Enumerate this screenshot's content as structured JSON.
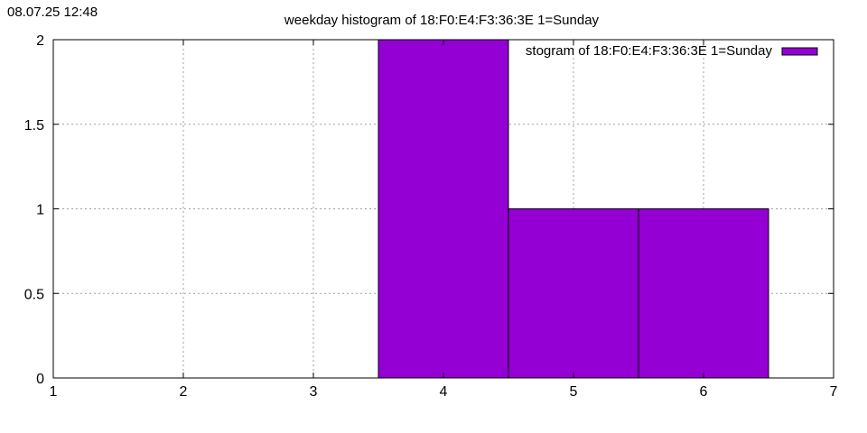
{
  "timestamp": "08.07.25 12:48",
  "chart_data": {
    "type": "bar",
    "title": "weekday histogram of 18:F0:E4:F3:36:3E 1=Sunday",
    "xlabel": "",
    "ylabel": "",
    "xlim": [
      1,
      7
    ],
    "ylim": [
      0,
      2
    ],
    "x_ticks": [
      "1",
      "2",
      "3",
      "4",
      "5",
      "6",
      "7"
    ],
    "y_ticks": [
      "0",
      "0.5",
      "1",
      "1.5",
      "2"
    ],
    "x": [
      4,
      5,
      6
    ],
    "values": [
      2,
      1,
      1
    ],
    "bar_width": 1,
    "grid": true,
    "legend": {
      "placement": "top-right",
      "label": "stogram of 18:F0:E4:F3:36:3E 1=Sunday"
    },
    "colors": {
      "bar_fill": "#9400d3",
      "bar_edge": "#000000",
      "grid": "#a0a0a0",
      "axis": "#000000"
    }
  }
}
